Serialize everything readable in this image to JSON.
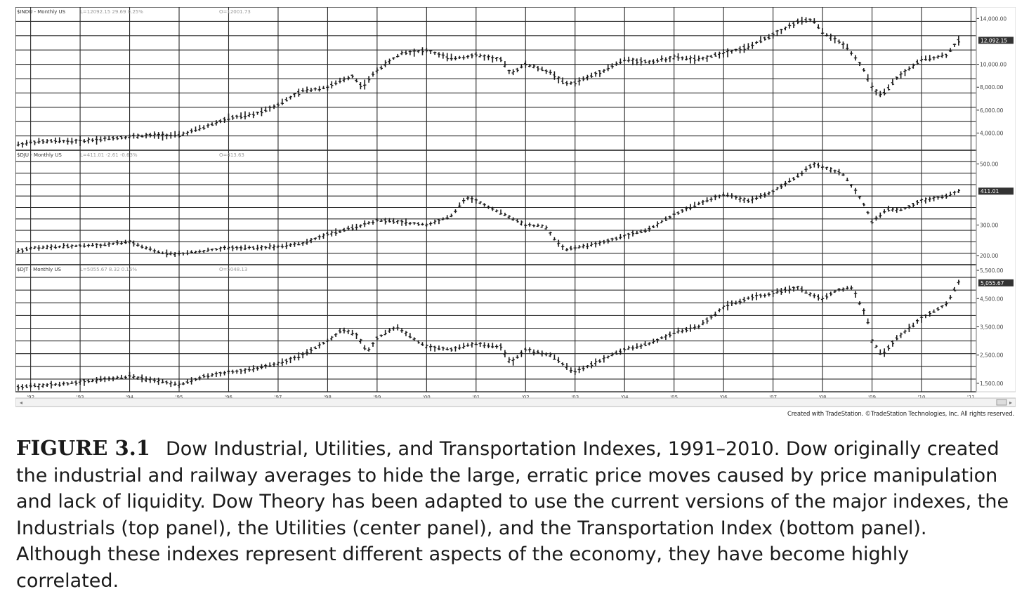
{
  "figure": {
    "label": "FIGURE 3.1",
    "caption": "Dow Industrial, Utilities, and Transportation Indexes, 1991–2010. Dow originally created the industrial and railway averages to hide the large, erratic price moves caused by price manipulation and lack of liquidity. Dow Theory has been adapted to use the current versions of the major indexes, the Industrials (top panel), the Utilities (center panel), and the Transportation Index (bottom panel). Although these indexes represent different aspects of the economy, they have become highly correlated."
  },
  "credit": "Created with TradeStation. ©TradeStation Technologies, Inc. All rights reserved.",
  "colors": {
    "bars": "#1a1a1a",
    "grid": "#2a2a2a",
    "axis_text": "#444444",
    "last_price_tag": "#333333",
    "last_price_text": "#ffffff"
  },
  "chart_data": [
    {
      "type": "bar",
      "panel": "top",
      "header": "$INDU - Monthly  US",
      "header_last": "L=12092.15  29.69  0.25%",
      "header_open": "O=12001.73",
      "last_value": 12092.15,
      "last_label": "12,092.15",
      "ylim": [
        2500,
        15000
      ],
      "yticks": [
        4000,
        6000,
        8000,
        10000,
        14000
      ],
      "ytick_labels": [
        "4,000.00",
        "6,000.00",
        "8,000.00",
        "10,000.00",
        "14,000.00"
      ],
      "series": [
        {
          "x": [
            1991.75,
            1992,
            1992.5,
            1993,
            1993.5,
            1994,
            1994.5,
            1995,
            1995.5,
            1996,
            1996.5,
            1997,
            1997.5,
            1998,
            1998.5,
            1998.7,
            1999,
            1999.5,
            2000,
            2000.5,
            2001,
            2001.5,
            2001.7,
            2002,
            2002.5,
            2002.8,
            2003,
            2003.5,
            2004,
            2004.5,
            2005,
            2005.5,
            2006,
            2006.5,
            2007,
            2007.5,
            2007.8,
            2008,
            2008.5,
            2008.8,
            2009,
            2009.2,
            2009.5,
            2010,
            2010.5,
            2010.75
          ],
          "values": [
            3000,
            3200,
            3300,
            3300,
            3500,
            3700,
            3800,
            3800,
            4500,
            5300,
            5600,
            6500,
            7700,
            8000,
            9000,
            8000,
            9500,
            11000,
            11200,
            10500,
            10800,
            10400,
            9200,
            10000,
            9300,
            8300,
            8400,
            9300,
            10400,
            10200,
            10600,
            10400,
            11000,
            11500,
            12600,
            13700,
            13900,
            12800,
            11500,
            9800,
            8000,
            7200,
            8800,
            10400,
            10800,
            12092
          ]
        }
      ]
    },
    {
      "type": "bar",
      "panel": "center",
      "header": "$DJU - Monthly  US",
      "header_last": "L=411.01  -2.61  -0.63%",
      "header_open": "O=413.63",
      "last_value": 411.01,
      "last_label": "411.01",
      "ylim": [
        170,
        545
      ],
      "yticks": [
        200,
        300,
        500
      ],
      "ytick_labels": [
        "200.00",
        "300.00",
        "500.00"
      ],
      "series": [
        {
          "x": [
            1991.75,
            1992,
            1992.5,
            1993,
            1993.5,
            1994,
            1994.3,
            1994.6,
            1995,
            1995.5,
            1996,
            1996.5,
            1997,
            1997.5,
            1998,
            1998.5,
            1999,
            1999.5,
            2000,
            2000.5,
            2000.8,
            2001,
            2001.5,
            2002,
            2002.4,
            2002.6,
            2002.8,
            2003,
            2003.5,
            2004,
            2004.5,
            2005,
            2005.5,
            2006,
            2006.5,
            2007,
            2007.5,
            2007.8,
            2008,
            2008.4,
            2008.8,
            2009,
            2009.3,
            2009.6,
            2010,
            2010.5,
            2010.75
          ],
          "values": [
            215,
            225,
            228,
            232,
            235,
            245,
            225,
            210,
            205,
            215,
            225,
            225,
            230,
            240,
            270,
            290,
            315,
            310,
            300,
            330,
            390,
            380,
            340,
            300,
            295,
            250,
            220,
            225,
            240,
            265,
            285,
            335,
            370,
            400,
            380,
            410,
            460,
            500,
            490,
            470,
            380,
            310,
            350,
            350,
            380,
            395,
            411
          ]
        }
      ]
    },
    {
      "type": "bar",
      "panel": "bottom",
      "header": "$DJT - Monthly  US",
      "header_last": "L=5055.67  8.32  0.16%",
      "header_open": "O=5048.13",
      "last_value": 5055.67,
      "last_label": "5,055.67",
      "ylim": [
        1200,
        5700
      ],
      "yticks": [
        1500,
        2500,
        3500,
        4500,
        5500
      ],
      "ytick_labels": [
        "1,500.00",
        "2,500.00",
        "3,500.00",
        "4,500.00",
        "5,500.00"
      ],
      "xtick_labels": [
        "'92",
        "'93",
        "'94",
        "'95",
        "'96",
        "'97",
        "'98",
        "'99",
        "'00",
        "'01",
        "'02",
        "'03",
        "'04",
        "'05",
        "'06",
        "'07",
        "'08",
        "'09",
        "'10",
        "'11"
      ],
      "series": [
        {
          "x": [
            1991.75,
            1992,
            1992.5,
            1993,
            1993.5,
            1994,
            1994.5,
            1995,
            1995.5,
            1996,
            1996.5,
            1997,
            1997.5,
            1998,
            1998.3,
            1998.6,
            1998.8,
            1999,
            1999.4,
            1999.8,
            2000,
            2000.5,
            2001,
            2001.5,
            2001.7,
            2002,
            2002.5,
            2002.9,
            2003,
            2003.5,
            2004,
            2004.5,
            2005,
            2005.5,
            2006,
            2006.5,
            2007,
            2007.5,
            2007.8,
            2008,
            2008.3,
            2008.6,
            2008.9,
            2009,
            2009.2,
            2009.5,
            2010,
            2010.5,
            2010.75
          ],
          "values": [
            1350,
            1400,
            1450,
            1550,
            1650,
            1750,
            1600,
            1450,
            1750,
            1900,
            2000,
            2200,
            2500,
            3000,
            3400,
            3200,
            2600,
            3100,
            3500,
            3000,
            2800,
            2700,
            2900,
            2800,
            2200,
            2700,
            2500,
            2000,
            1900,
            2300,
            2700,
            2900,
            3300,
            3500,
            4200,
            4500,
            4700,
            4900,
            4600,
            4500,
            4800,
            4900,
            3800,
            3000,
            2500,
            3100,
            3800,
            4300,
            5055
          ]
        }
      ]
    }
  ]
}
